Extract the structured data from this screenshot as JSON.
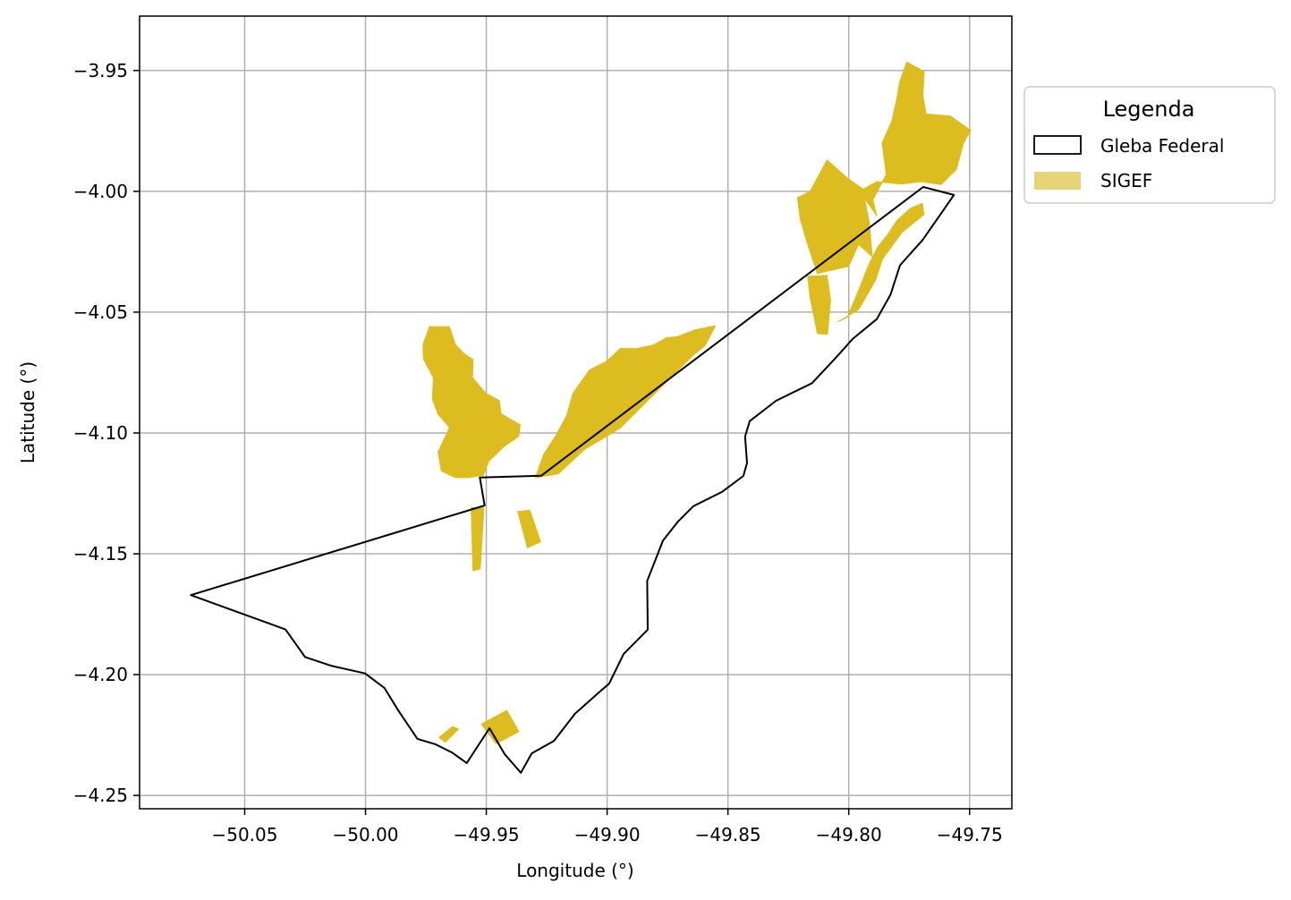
{
  "colors": {
    "background": "#ffffff",
    "grid": "#b0b0b0",
    "boundary_stroke": "#000000",
    "sigef_fill": "#dcbc1e",
    "sigef_legend_fill": "#e8d478",
    "legend_border": "#cccccc"
  },
  "chart_data": {
    "type": "map",
    "xlabel": "Longitude (°)",
    "ylabel": "Latitude (°)",
    "xlim": [
      -50.0935,
      -49.7325
    ],
    "ylim": [
      -4.2555,
      -3.9275
    ],
    "grid": true,
    "x_ticks": [
      {
        "value": -50.05,
        "label": "−50.05"
      },
      {
        "value": -50.0,
        "label": "−50.00"
      },
      {
        "value": -49.95,
        "label": "−49.95"
      },
      {
        "value": -49.9,
        "label": "−49.90"
      },
      {
        "value": -49.85,
        "label": "−49.85"
      },
      {
        "value": -49.8,
        "label": "−49.80"
      },
      {
        "value": -49.75,
        "label": "−49.75"
      }
    ],
    "y_ticks": [
      {
        "value": -3.95,
        "label": "−3.95"
      },
      {
        "value": -4.0,
        "label": "−4.00"
      },
      {
        "value": -4.05,
        "label": "−4.05"
      },
      {
        "value": -4.1,
        "label": "−4.10"
      },
      {
        "value": -4.15,
        "label": "−4.15"
      },
      {
        "value": -4.2,
        "label": "−4.20"
      },
      {
        "value": -4.25,
        "label": "−4.25"
      }
    ],
    "legend": {
      "title": "Legenda",
      "position": "upper-right-outside",
      "entries": [
        "Gleba Federal",
        "SIGEF"
      ]
    },
    "layers": [
      {
        "name": "Gleba Federal",
        "style": "outline",
        "polygons": [
          [
            [
              -49.7692,
              -3.9982
            ],
            [
              -49.9273,
              -4.1177
            ],
            [
              -49.9527,
              -4.1184
            ],
            [
              -49.9507,
              -4.13
            ],
            [
              -50.0723,
              -4.1671
            ],
            [
              -50.0331,
              -4.1813
            ],
            [
              -50.025,
              -4.1927
            ],
            [
              -50.0139,
              -4.1964
            ],
            [
              -50.0002,
              -4.1995
            ],
            [
              -49.9922,
              -4.2055
            ],
            [
              -49.9864,
              -4.2149
            ],
            [
              -49.9785,
              -4.2266
            ],
            [
              -49.9709,
              -4.2289
            ],
            [
              -49.9642,
              -4.2322
            ],
            [
              -49.9581,
              -4.2366
            ],
            [
              -49.9487,
              -4.2222
            ],
            [
              -49.9424,
              -4.2329
            ],
            [
              -49.9357,
              -4.2406
            ],
            [
              -49.9312,
              -4.2326
            ],
            [
              -49.922,
              -4.2274
            ],
            [
              -49.9133,
              -4.2162
            ],
            [
              -49.9033,
              -4.2073
            ],
            [
              -49.8992,
              -4.2038
            ],
            [
              -49.8932,
              -4.1915
            ],
            [
              -49.8832,
              -4.1814
            ],
            [
              -49.8834,
              -4.1612
            ],
            [
              -49.8769,
              -4.1446
            ],
            [
              -49.8707,
              -4.1367
            ],
            [
              -49.8643,
              -4.1303
            ],
            [
              -49.8523,
              -4.1243
            ],
            [
              -49.8436,
              -4.1178
            ],
            [
              -49.8421,
              -4.1124
            ],
            [
              -49.8429,
              -4.1015
            ],
            [
              -49.841,
              -4.0951
            ],
            [
              -49.8301,
              -4.0867
            ],
            [
              -49.8152,
              -4.0794
            ],
            [
              -49.8053,
              -4.0688
            ],
            [
              -49.7984,
              -4.0611
            ],
            [
              -49.7884,
              -4.0529
            ],
            [
              -49.7827,
              -4.0427
            ],
            [
              -49.7788,
              -4.0306
            ],
            [
              -49.7695,
              -4.0202
            ],
            [
              -49.7616,
              -4.0089
            ],
            [
              -49.7565,
              -4.0015
            ],
            [
              -49.7692,
              -3.9982
            ]
          ]
        ]
      },
      {
        "name": "SIGEF",
        "style": "fill",
        "polygons": [
          [
            [
              -49.9735,
              -4.056
            ],
            [
              -49.9653,
              -4.056
            ],
            [
              -49.9627,
              -4.0636
            ],
            [
              -49.9592,
              -4.0672
            ],
            [
              -49.9555,
              -4.0696
            ],
            [
              -49.9557,
              -4.0771
            ],
            [
              -49.9503,
              -4.0835
            ],
            [
              -49.9446,
              -4.0866
            ],
            [
              -49.9439,
              -4.092
            ],
            [
              -49.936,
              -4.0966
            ],
            [
              -49.9366,
              -4.1014
            ],
            [
              -49.9425,
              -4.1055
            ],
            [
              -49.9489,
              -4.1116
            ],
            [
              -49.9512,
              -4.1175
            ],
            [
              -49.9575,
              -4.1185
            ],
            [
              -49.9628,
              -4.1185
            ],
            [
              -49.9686,
              -4.1157
            ],
            [
              -49.97,
              -4.1079
            ],
            [
              -49.9652,
              -4.0978
            ],
            [
              -49.9699,
              -4.0923
            ],
            [
              -49.9723,
              -4.0861
            ],
            [
              -49.9719,
              -4.0771
            ],
            [
              -49.976,
              -4.0694
            ],
            [
              -49.9762,
              -4.0634
            ]
          ],
          [
            [
              -49.9297,
              -4.1185
            ],
            [
              -49.9202,
              -4.1169
            ],
            [
              -49.9095,
              -4.1069
            ],
            [
              -49.8945,
              -4.0979
            ],
            [
              -49.8845,
              -4.0879
            ],
            [
              -49.8745,
              -4.0779
            ],
            [
              -49.8645,
              -4.0679
            ],
            [
              -49.8595,
              -4.0639
            ],
            [
              -49.8552,
              -4.0557
            ],
            [
              -49.8631,
              -4.0572
            ],
            [
              -49.8709,
              -4.0601
            ],
            [
              -49.8755,
              -4.0606
            ],
            [
              -49.8808,
              -4.0636
            ],
            [
              -49.888,
              -4.0651
            ],
            [
              -49.8945,
              -4.065
            ],
            [
              -49.9001,
              -4.0703
            ],
            [
              -49.9073,
              -4.0739
            ],
            [
              -49.9142,
              -4.0836
            ],
            [
              -49.9167,
              -4.0927
            ],
            [
              -49.9211,
              -4.1009
            ],
            [
              -49.9263,
              -4.1089
            ],
            [
              -49.9297,
              -4.1185
            ]
          ],
          [
            [
              -49.9563,
              -4.1308
            ],
            [
              -49.951,
              -4.131
            ],
            [
              -49.9525,
              -4.1563
            ],
            [
              -49.9555,
              -4.157
            ]
          ],
          [
            [
              -49.937,
              -4.1325
            ],
            [
              -49.932,
              -4.132
            ],
            [
              -49.9275,
              -4.145
            ],
            [
              -49.933,
              -4.1475
            ]
          ],
          [
            [
              -49.952,
              -4.2205
            ],
            [
              -49.9415,
              -4.2148
            ],
            [
              -49.9365,
              -4.2236
            ],
            [
              -49.946,
              -4.2286
            ]
          ],
          [
            [
              -49.9695,
              -4.226
            ],
            [
              -49.964,
              -4.2215
            ],
            [
              -49.9615,
              -4.2225
            ],
            [
              -49.967,
              -4.228
            ]
          ],
          [
            [
              -49.8212,
              -4.0026
            ],
            [
              -49.816,
              -4.0
            ],
            [
              -49.809,
              -3.987
            ],
            [
              -49.8006,
              -3.9945
            ],
            [
              -49.7942,
              -3.999
            ],
            [
              -49.7915,
              -4.013
            ],
            [
              -49.7903,
              -4.027
            ],
            [
              -49.796,
              -4.022
            ],
            [
              -49.8,
              -4.031
            ],
            [
              -49.813,
              -4.034
            ],
            [
              -49.817,
              -4.022
            ],
            [
              -49.8201,
              -4.0115
            ]
          ],
          [
            [
              -49.817,
              -4.0352
            ],
            [
              -49.809,
              -4.0348
            ],
            [
              -49.8075,
              -4.045
            ],
            [
              -49.8088,
              -4.0592
            ],
            [
              -49.813,
              -4.0588
            ],
            [
              -49.816,
              -4.044
            ]
          ],
          [
            [
              -49.7885,
              -4.01
            ],
            [
              -49.7955,
              -4.0
            ],
            [
              -49.7885,
              -3.996
            ],
            [
              -49.778,
              -3.997
            ],
            [
              -49.77,
              -3.996
            ],
            [
              -49.7618,
              -3.9972
            ],
            [
              -49.7555,
              -3.991
            ],
            [
              -49.7525,
              -3.98
            ],
            [
              -49.7495,
              -3.9748
            ],
            [
              -49.758,
              -3.9688
            ],
            [
              -49.768,
              -3.968
            ],
            [
              -49.7693,
              -3.9602
            ],
            [
              -49.7688,
              -3.9505
            ],
            [
              -49.776,
              -3.9465
            ],
            [
              -49.779,
              -3.955
            ],
            [
              -49.78,
              -3.9612
            ],
            [
              -49.7822,
              -3.971
            ],
            [
              -49.7862,
              -3.98
            ],
            [
              -49.7845,
              -3.993
            ],
            [
              -49.79,
              -4.0035
            ]
          ],
          [
            [
              -49.8045,
              -4.054
            ],
            [
              -49.8005,
              -4.052
            ],
            [
              -49.7955,
              -4.04
            ],
            [
              -49.792,
              -4.031
            ],
            [
              -49.788,
              -4.023
            ],
            [
              -49.784,
              -4.018
            ],
            [
              -49.78,
              -4.012
            ],
            [
              -49.7745,
              -4.007
            ],
            [
              -49.7695,
              -4.005
            ],
            [
              -49.7689,
              -4.0096
            ],
            [
              -49.778,
              -4.017
            ],
            [
              -49.786,
              -4.028
            ],
            [
              -49.789,
              -4.037
            ],
            [
              -49.796,
              -4.049
            ]
          ]
        ]
      }
    ]
  }
}
